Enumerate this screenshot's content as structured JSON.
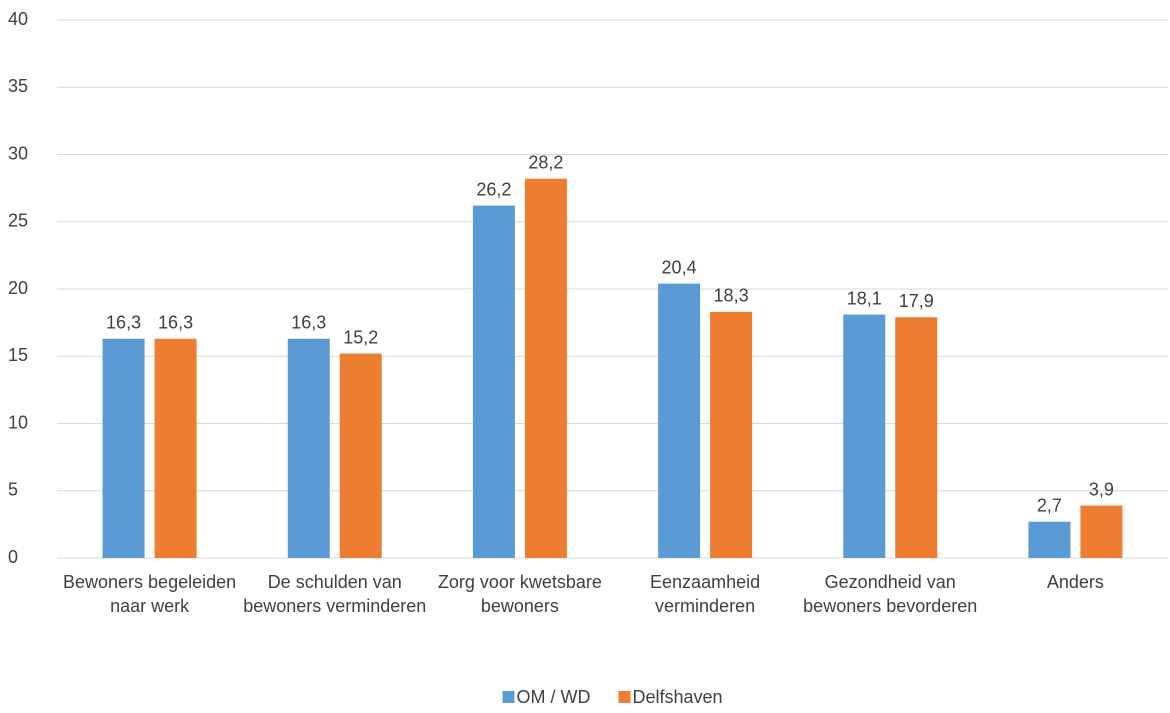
{
  "chart_data": {
    "type": "bar",
    "categories": [
      "Bewoners begeleiden naar werk",
      "De schulden van bewoners verminderen",
      "Zorg voor kwetsbare bewoners",
      "Eenzaamheid verminderen",
      "Gezondheid van bewoners bevorderen",
      "Anders"
    ],
    "series": [
      {
        "name": "OM / WD",
        "color": "#5b9bd5",
        "values": [
          16.3,
          16.3,
          26.2,
          20.4,
          18.1,
          2.7
        ],
        "value_labels": [
          "16,3",
          "16,3",
          "26,2",
          "20,4",
          "18,1",
          "2,7"
        ]
      },
      {
        "name": "Delfshaven",
        "color": "#ed7d31",
        "values": [
          16.3,
          15.2,
          28.2,
          18.3,
          17.9,
          3.9
        ],
        "value_labels": [
          "16,3",
          "15,2",
          "28,2",
          "18,3",
          "17,9",
          "3,9"
        ]
      }
    ],
    "ylim": [
      0,
      40
    ],
    "yticks": [
      0,
      5,
      10,
      15,
      20,
      25,
      30,
      35,
      40
    ],
    "grid": true,
    "legend": "bottom"
  }
}
